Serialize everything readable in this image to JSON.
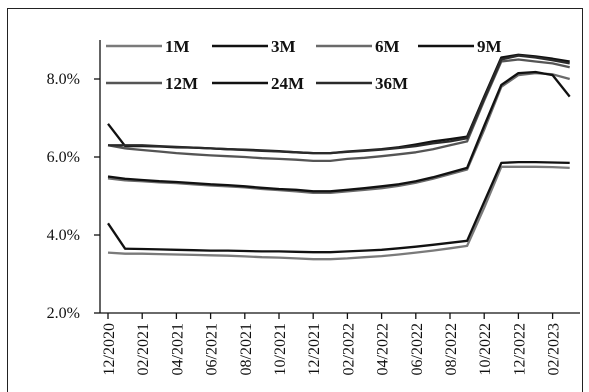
{
  "chart_data": {
    "type": "line",
    "title": "",
    "xlabel": "",
    "ylabel": "",
    "ylim": [
      2.0,
      9.0
    ],
    "y_ticks": [
      "2.0%",
      "4.0%",
      "6.0%",
      "8.0%"
    ],
    "y_tick_values": [
      2.0,
      4.0,
      6.0,
      8.0
    ],
    "x_tick_labels": [
      "12/2020",
      "02/2021",
      "04/2021",
      "06/2021",
      "08/2021",
      "10/2021",
      "12/2021",
      "02/2022",
      "04/2022",
      "06/2022",
      "08/2022",
      "10/2022",
      "12/2022",
      "02/2023"
    ],
    "x": [
      "12/2020",
      "01/2021",
      "02/2021",
      "03/2021",
      "04/2021",
      "05/2021",
      "06/2021",
      "07/2021",
      "08/2021",
      "09/2021",
      "10/2021",
      "11/2021",
      "12/2021",
      "01/2022",
      "02/2022",
      "03/2022",
      "04/2022",
      "05/2022",
      "06/2022",
      "07/2022",
      "08/2022",
      "09/2022",
      "10/2022",
      "11/2022",
      "12/2022",
      "01/2023",
      "02/2023",
      "03/2023"
    ],
    "grid": false,
    "legend_position": "top",
    "series": [
      {
        "name": "1M",
        "color": "#7a7a7a",
        "values": [
          3.55,
          3.52,
          3.52,
          3.51,
          3.5,
          3.49,
          3.48,
          3.47,
          3.45,
          3.43,
          3.42,
          3.4,
          3.38,
          3.38,
          3.4,
          3.43,
          3.46,
          3.5,
          3.55,
          3.6,
          3.66,
          3.72,
          4.7,
          5.75,
          5.75,
          5.75,
          5.74,
          5.72
        ]
      },
      {
        "name": "3M",
        "color": "#111111",
        "values": [
          4.3,
          3.65,
          3.64,
          3.63,
          3.62,
          3.61,
          3.6,
          3.6,
          3.59,
          3.58,
          3.58,
          3.57,
          3.56,
          3.56,
          3.58,
          3.6,
          3.62,
          3.66,
          3.7,
          3.75,
          3.8,
          3.85,
          4.85,
          5.85,
          5.87,
          5.87,
          5.86,
          5.85
        ]
      },
      {
        "name": "6M",
        "color": "#6a6a6a",
        "values": [
          5.45,
          5.4,
          5.38,
          5.35,
          5.33,
          5.3,
          5.27,
          5.25,
          5.22,
          5.18,
          5.15,
          5.12,
          5.08,
          5.08,
          5.12,
          5.16,
          5.2,
          5.26,
          5.34,
          5.44,
          5.56,
          5.68,
          6.7,
          7.8,
          8.1,
          8.15,
          8.12,
          8.0
        ]
      },
      {
        "name": "9M",
        "color": "#111111",
        "values": [
          5.5,
          5.44,
          5.41,
          5.38,
          5.36,
          5.33,
          5.3,
          5.28,
          5.25,
          5.21,
          5.18,
          5.16,
          5.12,
          5.12,
          5.16,
          5.2,
          5.25,
          5.3,
          5.38,
          5.48,
          5.6,
          5.72,
          6.8,
          7.85,
          8.15,
          8.18,
          8.1,
          7.55
        ]
      },
      {
        "name": "12M",
        "color": "#555555",
        "values": [
          6.3,
          6.22,
          6.18,
          6.14,
          6.1,
          6.07,
          6.04,
          6.02,
          6.0,
          5.97,
          5.95,
          5.93,
          5.9,
          5.9,
          5.95,
          5.98,
          6.02,
          6.07,
          6.12,
          6.2,
          6.3,
          6.4,
          7.45,
          8.45,
          8.5,
          8.45,
          8.4,
          8.3
        ]
      },
      {
        "name": "24M",
        "color": "#111111",
        "values": [
          6.85,
          6.28,
          6.28,
          6.27,
          6.25,
          6.24,
          6.22,
          6.2,
          6.19,
          6.17,
          6.15,
          6.12,
          6.1,
          6.1,
          6.14,
          6.17,
          6.2,
          6.25,
          6.32,
          6.4,
          6.46,
          6.52,
          7.55,
          8.55,
          8.62,
          8.58,
          8.52,
          8.45
        ]
      },
      {
        "name": "36M",
        "color": "#2a2a2a",
        "values": [
          6.3,
          6.3,
          6.3,
          6.28,
          6.26,
          6.24,
          6.22,
          6.2,
          6.18,
          6.16,
          6.14,
          6.12,
          6.1,
          6.1,
          6.13,
          6.16,
          6.19,
          6.23,
          6.28,
          6.35,
          6.4,
          6.48,
          7.5,
          8.5,
          8.6,
          8.55,
          8.48,
          8.4
        ]
      }
    ]
  }
}
